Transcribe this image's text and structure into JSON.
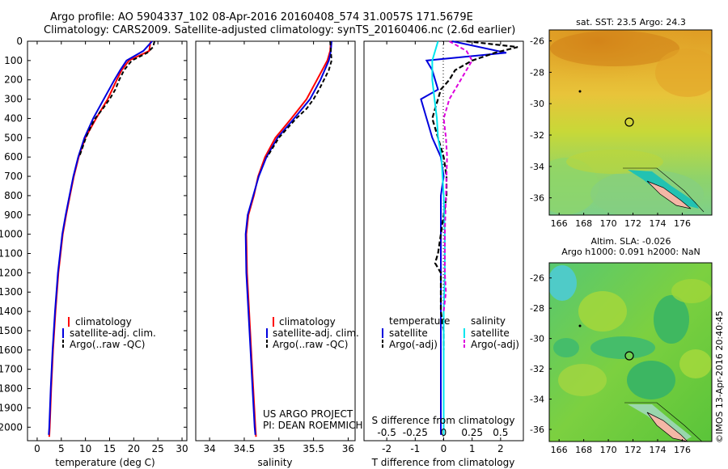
{
  "header": {
    "line1": "Argo profile: AO 5904337_102 08-Apr-2016 20160408_574 31.0057S 171.5679E",
    "line2": "Climatology: CARS2009. Satellite-adjusted climatology: synTS_20160406.nc (2.6d earlier)"
  },
  "colors": {
    "climatology": "#ff0000",
    "satellite": "#0000dd",
    "argo": "#000000",
    "salinity_sat": "#00e5ee",
    "salinity_argo": "#dd00dd"
  },
  "legends": {
    "climatology": "climatology",
    "satellite_adj": "satellite-adj. clim.",
    "argo_raw": "Argo(..raw -QC)",
    "temperature": "temperature",
    "salinity": "salinity",
    "satellite": "satellite",
    "argo_adj": "Argo(-adj)"
  },
  "project": {
    "line1": "US ARGO PROJECT",
    "line2": "PI: DEAN ROEMMICH"
  },
  "maps": {
    "sst_title": "sat. SST: 23.5 Argo: 24.3",
    "sla_title1": "Altim. SLA: -0.026",
    "sla_title2": "Argo h1000: 0.091 h2000: NaN",
    "credit": "©IMOS 13-Apr-2016 20:40:45",
    "xticks": [
      "166",
      "168",
      "170",
      "172",
      "174",
      "176"
    ],
    "yticks": [
      "-26",
      "-28",
      "-30",
      "-32",
      "-34",
      "-36"
    ]
  },
  "chart_data": [
    {
      "type": "line",
      "xlabel": "temperature (deg C)",
      "ylabel": "",
      "xlim": [
        -2,
        31
      ],
      "ylim": [
        2070,
        0
      ],
      "xticks": [
        "0",
        "5",
        "10",
        "15",
        "20",
        "25",
        "30"
      ],
      "yticks": [
        "0",
        "100",
        "200",
        "300",
        "400",
        "500",
        "600",
        "700",
        "800",
        "900",
        "1000",
        "1100",
        "1200",
        "1300",
        "1400",
        "1500",
        "1600",
        "1700",
        "1800",
        "1900",
        "2000"
      ],
      "series": [
        {
          "name": "climatology",
          "depth": [
            0,
            50,
            100,
            150,
            200,
            300,
            400,
            500,
            600,
            700,
            800,
            900,
            1000,
            1200,
            1400,
            1600,
            1800,
            2000,
            2050
          ],
          "values": [
            23.5,
            23.2,
            19.0,
            17.5,
            16.5,
            14.6,
            12.2,
            10.0,
            8.6,
            7.6,
            6.8,
            6.0,
            5.3,
            4.4,
            3.8,
            3.3,
            2.9,
            2.6,
            2.5
          ]
        },
        {
          "name": "satellite-adj. clim.",
          "depth": [
            0,
            50,
            100,
            150,
            200,
            300,
            400,
            500,
            600,
            700,
            800,
            900,
            1000,
            1200,
            1400,
            1600,
            1800,
            2000,
            2040
          ],
          "values": [
            23.8,
            22.0,
            18.5,
            17.2,
            16.0,
            13.8,
            11.6,
            9.8,
            8.5,
            7.5,
            6.7,
            5.9,
            5.2,
            4.3,
            3.7,
            3.2,
            2.8,
            2.5,
            2.4
          ]
        },
        {
          "name": "Argo(..raw -QC)",
          "depth": [
            0,
            30,
            60,
            100,
            150,
            200,
            250,
            300,
            350,
            400,
            450,
            500,
            600
          ],
          "values": [
            24.3,
            24.0,
            22.8,
            19.6,
            18.0,
            17.0,
            16.2,
            15.0,
            13.6,
            12.0,
            11.0,
            10.1,
            8.7
          ]
        }
      ]
    },
    {
      "type": "line",
      "xlabel": "salinity",
      "ylabel": "",
      "xlim": [
        33.8,
        36.1
      ],
      "ylim": [
        2070,
        0
      ],
      "xticks": [
        "34",
        "34.5",
        "35",
        "35.5",
        "36"
      ],
      "series": [
        {
          "name": "climatology",
          "depth": [
            0,
            50,
            100,
            200,
            300,
            400,
            500,
            600,
            700,
            800,
            900,
            1000,
            1200,
            1400,
            1600,
            1800,
            2000,
            2050
          ],
          "values": [
            35.75,
            35.74,
            35.7,
            35.55,
            35.4,
            35.18,
            34.95,
            34.8,
            34.7,
            34.64,
            34.56,
            34.53,
            34.54,
            34.57,
            34.6,
            34.63,
            34.66,
            34.67
          ]
        },
        {
          "name": "satellite-adj. clim.",
          "depth": [
            0,
            50,
            100,
            200,
            300,
            400,
            500,
            600,
            700,
            800,
            900,
            1000,
            1200,
            1400,
            1600,
            1800,
            2000,
            2040
          ],
          "values": [
            35.76,
            35.75,
            35.72,
            35.6,
            35.45,
            35.22,
            34.98,
            34.82,
            34.71,
            34.63,
            34.55,
            34.52,
            34.53,
            34.56,
            34.59,
            34.62,
            34.65,
            34.66
          ]
        },
        {
          "name": "Argo(..raw -QC)",
          "depth": [
            0,
            50,
            100,
            150,
            200,
            250,
            300,
            350,
            400,
            500,
            600
          ],
          "values": [
            35.74,
            35.75,
            35.76,
            35.72,
            35.65,
            35.58,
            35.5,
            35.4,
            35.25,
            35.0,
            34.83
          ]
        }
      ]
    },
    {
      "type": "line",
      "xlabel": "T difference from climatology",
      "x2label": "S difference from climatology",
      "xlim": [
        -2.8,
        2.8
      ],
      "ylim": [
        2070,
        0
      ],
      "xticks": [
        "-2",
        "-1",
        "0",
        "1",
        "2"
      ],
      "x2ticks": [
        "-0.5",
        "-0.25",
        "0",
        "0.25",
        "0.5"
      ],
      "series": [
        {
          "name": "temperature satellite",
          "depth": [
            0,
            60,
            100,
            150,
            200,
            250,
            300,
            400,
            500,
            600,
            700,
            800,
            900,
            1000,
            1200,
            1400,
            1600,
            1800,
            2000,
            2040
          ],
          "values": [
            0.3,
            2.2,
            -0.6,
            -0.4,
            -0.3,
            -0.2,
            -0.8,
            -0.6,
            -0.4,
            -0.1,
            0.0,
            -0.1,
            -0.1,
            -0.1,
            -0.1,
            -0.1,
            -0.1,
            -0.1,
            -0.1,
            -0.1
          ]
        },
        {
          "name": "temperature Argo(-adj)",
          "depth": [
            0,
            30,
            60,
            100,
            150,
            200,
            250,
            300,
            350,
            400,
            500,
            600,
            700,
            800,
            1100,
            1150,
            1200,
            1300,
            1400,
            1500,
            1600
          ],
          "values": [
            0.8,
            2.6,
            1.8,
            1.0,
            0.4,
            0.2,
            -0.1,
            -0.2,
            -0.3,
            -0.4,
            -0.2,
            0.0,
            0.1,
            0.1,
            -0.2,
            -0.3,
            -0.1,
            -0.1,
            -0.1,
            0.0,
            0.0
          ]
        },
        {
          "name": "salinity satellite",
          "depth": [
            0,
            100,
            200,
            300,
            400,
            500,
            600,
            800,
            1000,
            1200,
            1400,
            1600,
            1800,
            2000,
            2040
          ],
          "values": [
            -0.05,
            -0.1,
            -0.1,
            -0.08,
            -0.06,
            -0.05,
            -0.02,
            0.0,
            0.01,
            0.01,
            0.0,
            0.0,
            0.0,
            0.0,
            0.0
          ]
        },
        {
          "name": "salinity Argo(-adj)",
          "depth": [
            0,
            50,
            100,
            150,
            200,
            300,
            400,
            500,
            600,
            800,
            1000,
            1200,
            1300,
            1400
          ],
          "values": [
            0.05,
            0.2,
            0.25,
            0.2,
            0.15,
            0.05,
            0.0,
            0.02,
            0.03,
            0.02,
            0.01,
            0.01,
            0.02,
            0.0
          ]
        }
      ]
    }
  ]
}
